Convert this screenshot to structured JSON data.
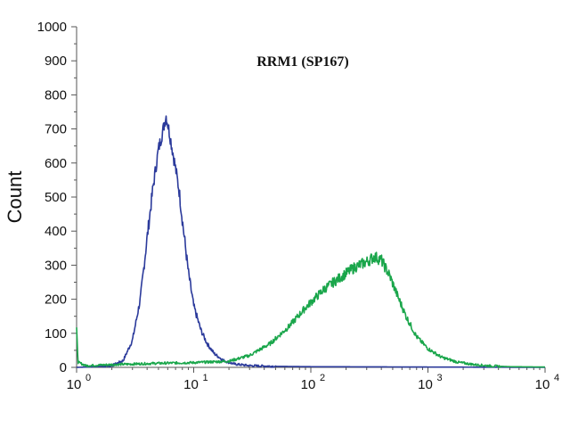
{
  "chart_data": {
    "type": "line",
    "title": "RRM1 (SP167)",
    "ylabel": "Count",
    "xlabel": "",
    "xscale": "log",
    "xlim": [
      1,
      10000
    ],
    "ylim": [
      0,
      1000
    ],
    "grid": false,
    "x_ticks": [
      {
        "value": 1,
        "base": "10",
        "exp": "0"
      },
      {
        "value": 10,
        "base": "10",
        "exp": "1"
      },
      {
        "value": 100,
        "base": "10",
        "exp": "2"
      },
      {
        "value": 1000,
        "base": "10",
        "exp": "3"
      },
      {
        "value": 10000,
        "base": "10",
        "exp": "4"
      }
    ],
    "y_ticks": [
      0,
      100,
      200,
      300,
      400,
      500,
      600,
      700,
      800,
      900,
      1000
    ],
    "series": [
      {
        "color": "#2b3a9b",
        "points": [
          [
            1,
            0
          ],
          [
            1.5,
            2
          ],
          [
            2,
            5
          ],
          [
            2.5,
            20
          ],
          [
            3,
            80
          ],
          [
            3.5,
            200
          ],
          [
            4,
            380
          ],
          [
            4.5,
            530
          ],
          [
            5,
            640
          ],
          [
            5.5,
            700
          ],
          [
            5.8,
            740
          ],
          [
            6.2,
            690
          ],
          [
            6.8,
            610
          ],
          [
            7.5,
            520
          ],
          [
            8.2,
            400
          ],
          [
            9,
            280
          ],
          [
            10,
            180
          ],
          [
            11.5,
            110
          ],
          [
            13,
            70
          ],
          [
            15,
            40
          ],
          [
            18,
            20
          ],
          [
            22,
            10
          ],
          [
            30,
            5
          ],
          [
            50,
            3
          ],
          [
            100,
            2
          ],
          [
            1000,
            1
          ],
          [
            10000,
            0
          ]
        ]
      },
      {
        "color": "#1aa64b",
        "points": [
          [
            1,
            110
          ],
          [
            1.03,
            15
          ],
          [
            1.2,
            5
          ],
          [
            2,
            8
          ],
          [
            5,
            12
          ],
          [
            10,
            14
          ],
          [
            20,
            18
          ],
          [
            30,
            35
          ],
          [
            45,
            70
          ],
          [
            65,
            120
          ],
          [
            90,
            175
          ],
          [
            130,
            230
          ],
          [
            180,
            265
          ],
          [
            240,
            295
          ],
          [
            300,
            310
          ],
          [
            350,
            325
          ],
          [
            400,
            315
          ],
          [
            470,
            270
          ],
          [
            550,
            210
          ],
          [
            650,
            150
          ],
          [
            800,
            90
          ],
          [
            1000,
            55
          ],
          [
            1300,
            30
          ],
          [
            1800,
            15
          ],
          [
            2500,
            8
          ],
          [
            3500,
            4
          ],
          [
            5000,
            2
          ],
          [
            10000,
            1
          ]
        ]
      }
    ]
  }
}
